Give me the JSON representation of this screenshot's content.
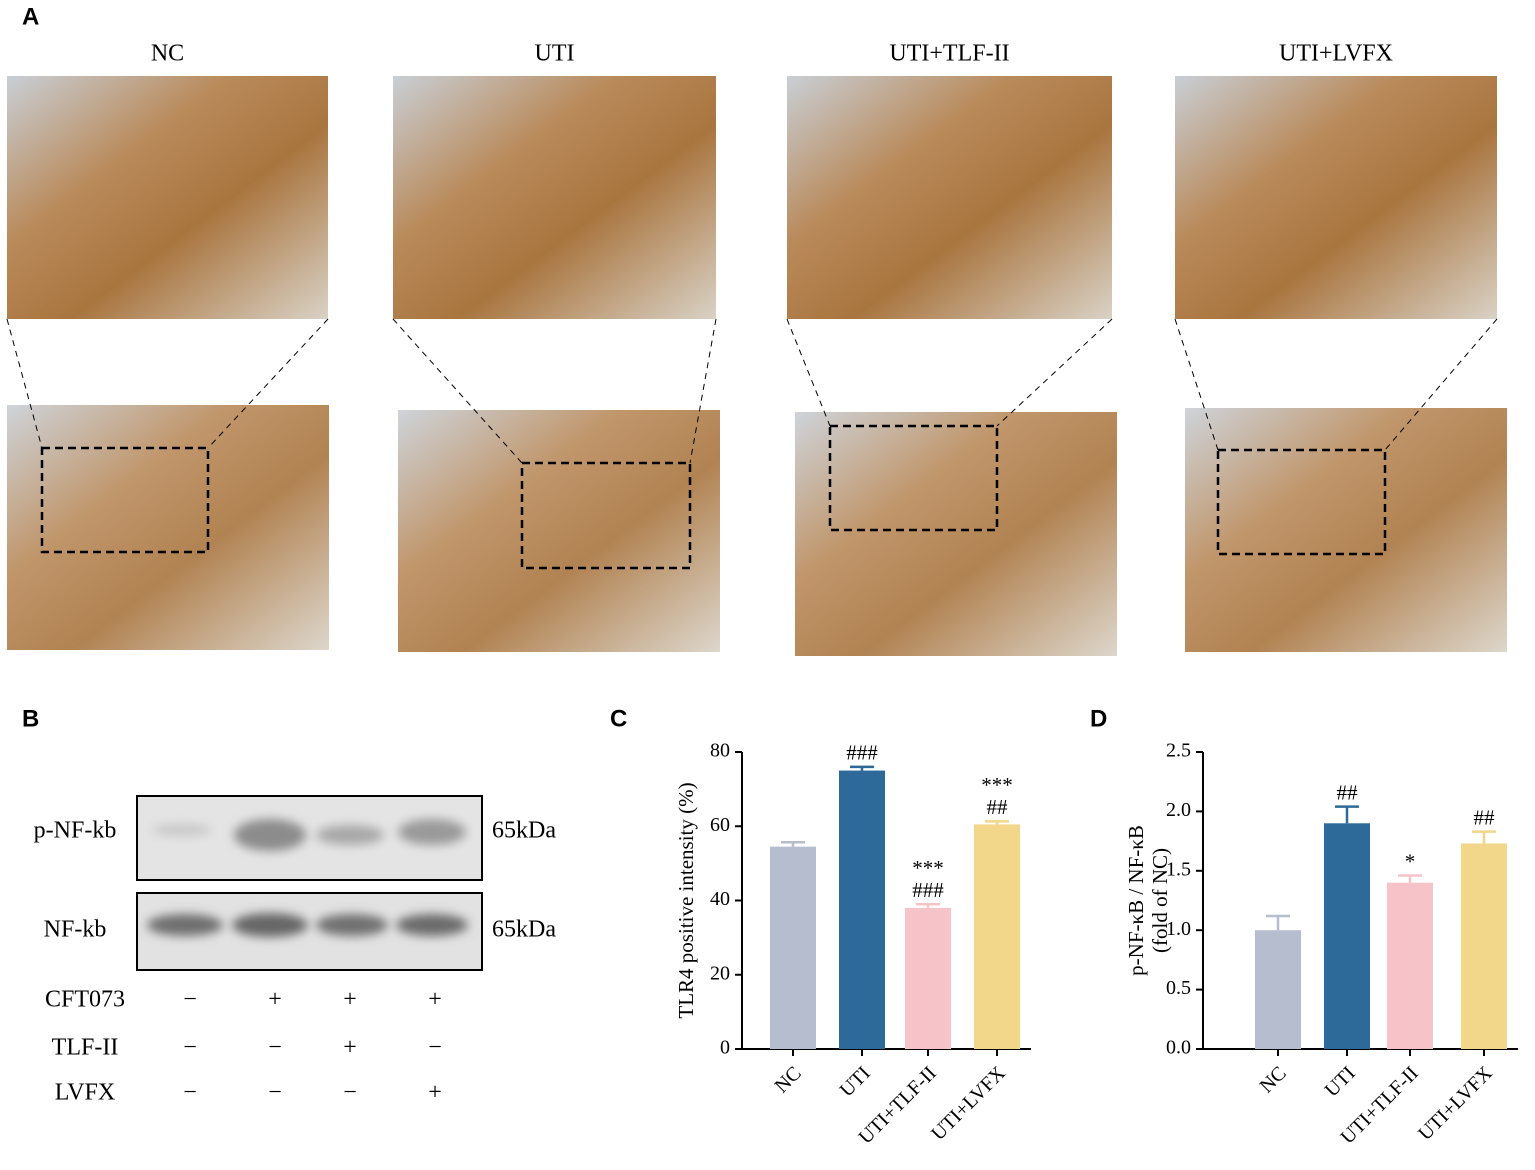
{
  "panel_labels": [
    "A",
    "B",
    "C",
    "D"
  ],
  "panel_a": {
    "groups": [
      "NC",
      "UTI",
      "UTI+TLF-II",
      "UTI+LVFX"
    ]
  },
  "panel_b": {
    "blots": [
      {
        "label": "p-NF-kb",
        "size": "65kDa"
      },
      {
        "label": "NF-kb",
        "size": "65kDa"
      }
    ],
    "treatments": [
      {
        "name": "CFT073",
        "signs": [
          "−",
          "+",
          "+",
          "+"
        ]
      },
      {
        "name": "TLF-II",
        "signs": [
          "−",
          "−",
          "+",
          "−"
        ]
      },
      {
        "name": "LVFX",
        "signs": [
          "−",
          "−",
          "−",
          "+"
        ]
      }
    ]
  },
  "chart_data": [
    {
      "type": "bar",
      "ylabel": [
        "TLR4 positive intensity (%)"
      ],
      "categories": [
        "NC",
        "UTI",
        "UTI+TLF-II",
        "UTI+LVFX"
      ],
      "values": [
        54.5,
        75,
        38,
        60.5
      ],
      "errors": [
        1.2,
        1,
        1,
        0.8
      ],
      "colors": [
        "#b6bdcf",
        "#2d6a9a",
        "#f6c4c8",
        "#f2d68a"
      ],
      "annotations": [
        null,
        [
          "###"
        ],
        [
          "***",
          "###"
        ],
        [
          "***",
          "##"
        ]
      ],
      "ylim": [
        0,
        80
      ],
      "yticks": [
        0,
        20,
        40,
        60,
        80
      ]
    },
    {
      "type": "bar",
      "ylabel": [
        "p-NF-κB / NF-κB",
        "(fold of NC)"
      ],
      "categories": [
        "NC",
        "UTI",
        "UTI+TLF-II",
        "UTI+LVFX"
      ],
      "values": [
        1.0,
        1.9,
        1.4,
        1.73
      ],
      "errors": [
        0.12,
        0.14,
        0.06,
        0.1
      ],
      "colors": [
        "#b6bdcf",
        "#2d6a9a",
        "#f6c4c8",
        "#f2d68a"
      ],
      "annotations": [
        null,
        [
          "##"
        ],
        [
          "*"
        ],
        [
          "##"
        ]
      ],
      "ylim": [
        0,
        2.5
      ],
      "yticks": [
        {
          "value": 0,
          "label": "0.0"
        },
        0.5,
        {
          "value": 1,
          "label": "1.0"
        },
        1.5,
        {
          "value": 2,
          "label": "2.0"
        },
        2.5
      ]
    }
  ]
}
